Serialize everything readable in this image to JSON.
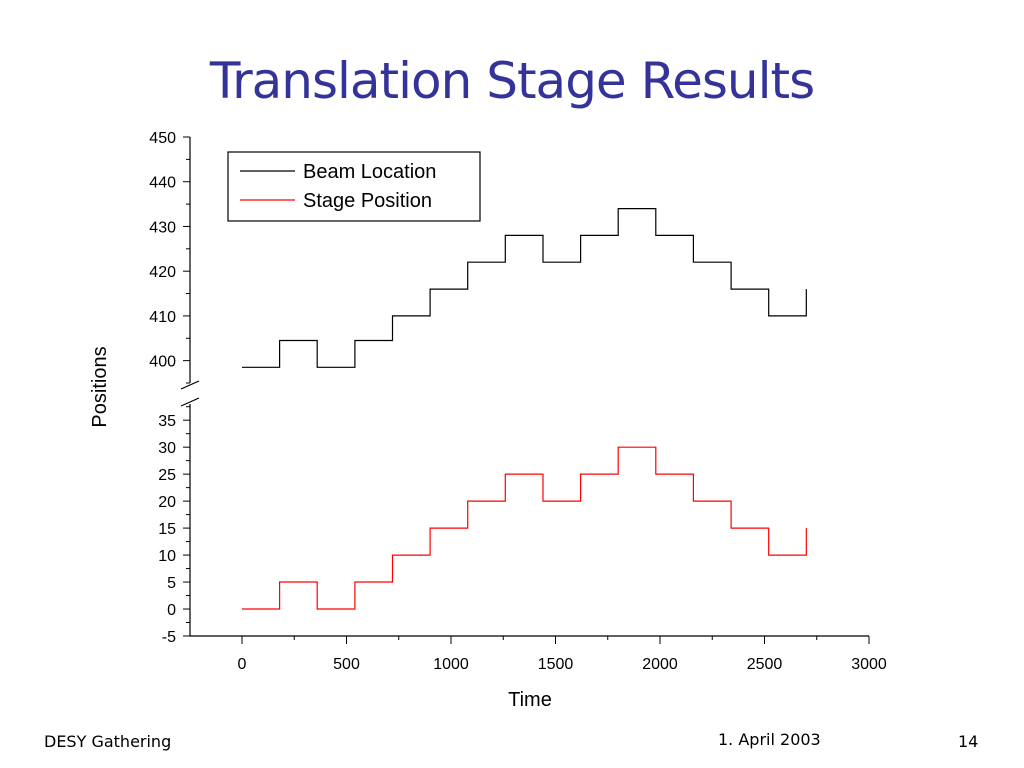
{
  "slide": {
    "title": "Translation Stage Results",
    "footer_left": "DESY Gathering",
    "footer_date": "1. April 2003",
    "page_number": "14"
  },
  "chart_data": {
    "type": "line",
    "xlabel": "Time",
    "ylabel": "Positions",
    "xlim": [
      -200,
      3000
    ],
    "x_ticks": [
      "0",
      "500",
      "1000",
      "1500",
      "2000",
      "2500",
      "3000"
    ],
    "y_upper_range": [
      395,
      450
    ],
    "y_upper_ticks": [
      "400",
      "410",
      "420",
      "430",
      "440",
      "450"
    ],
    "y_lower_range": [
      -5,
      38
    ],
    "y_lower_ticks": [
      "-5",
      "0",
      "5",
      "10",
      "15",
      "20",
      "25",
      "30",
      "35"
    ],
    "axis_break": true,
    "grid": false,
    "legend_position": "top-left",
    "series": [
      {
        "name": "Beam Location",
        "color": "#000000",
        "axis": "upper",
        "steps": [
          {
            "x_start": 0,
            "x_end": 180,
            "y": 398.5
          },
          {
            "x_start": 180,
            "x_end": 360,
            "y": 404.5
          },
          {
            "x_start": 360,
            "x_end": 540,
            "y": 398.5
          },
          {
            "x_start": 540,
            "x_end": 720,
            "y": 404.5
          },
          {
            "x_start": 720,
            "x_end": 900,
            "y": 410
          },
          {
            "x_start": 900,
            "x_end": 1080,
            "y": 416
          },
          {
            "x_start": 1080,
            "x_end": 1260,
            "y": 422
          },
          {
            "x_start": 1260,
            "x_end": 1440,
            "y": 428
          },
          {
            "x_start": 1440,
            "x_end": 1620,
            "y": 422
          },
          {
            "x_start": 1620,
            "x_end": 1800,
            "y": 428
          },
          {
            "x_start": 1800,
            "x_end": 1980,
            "y": 434
          },
          {
            "x_start": 1980,
            "x_end": 2160,
            "y": 428
          },
          {
            "x_start": 2160,
            "x_end": 2340,
            "y": 422
          },
          {
            "x_start": 2340,
            "x_end": 2520,
            "y": 416
          },
          {
            "x_start": 2520,
            "x_end": 2700,
            "y": 410
          }
        ],
        "final_point": {
          "x": 2700,
          "y": 416
        }
      },
      {
        "name": "Stage Position",
        "color": "#ff0000",
        "axis": "lower",
        "steps": [
          {
            "x_start": 0,
            "x_end": 180,
            "y": 0
          },
          {
            "x_start": 180,
            "x_end": 360,
            "y": 5
          },
          {
            "x_start": 360,
            "x_end": 540,
            "y": 0
          },
          {
            "x_start": 540,
            "x_end": 720,
            "y": 5
          },
          {
            "x_start": 720,
            "x_end": 900,
            "y": 10
          },
          {
            "x_start": 900,
            "x_end": 1080,
            "y": 15
          },
          {
            "x_start": 1080,
            "x_end": 1260,
            "y": 20
          },
          {
            "x_start": 1260,
            "x_end": 1440,
            "y": 25
          },
          {
            "x_start": 1440,
            "x_end": 1620,
            "y": 20
          },
          {
            "x_start": 1620,
            "x_end": 1800,
            "y": 25
          },
          {
            "x_start": 1800,
            "x_end": 1980,
            "y": 30
          },
          {
            "x_start": 1980,
            "x_end": 2160,
            "y": 25
          },
          {
            "x_start": 2160,
            "x_end": 2340,
            "y": 20
          },
          {
            "x_start": 2340,
            "x_end": 2520,
            "y": 15
          },
          {
            "x_start": 2520,
            "x_end": 2700,
            "y": 10
          }
        ],
        "final_point": {
          "x": 2700,
          "y": 15
        }
      }
    ]
  }
}
